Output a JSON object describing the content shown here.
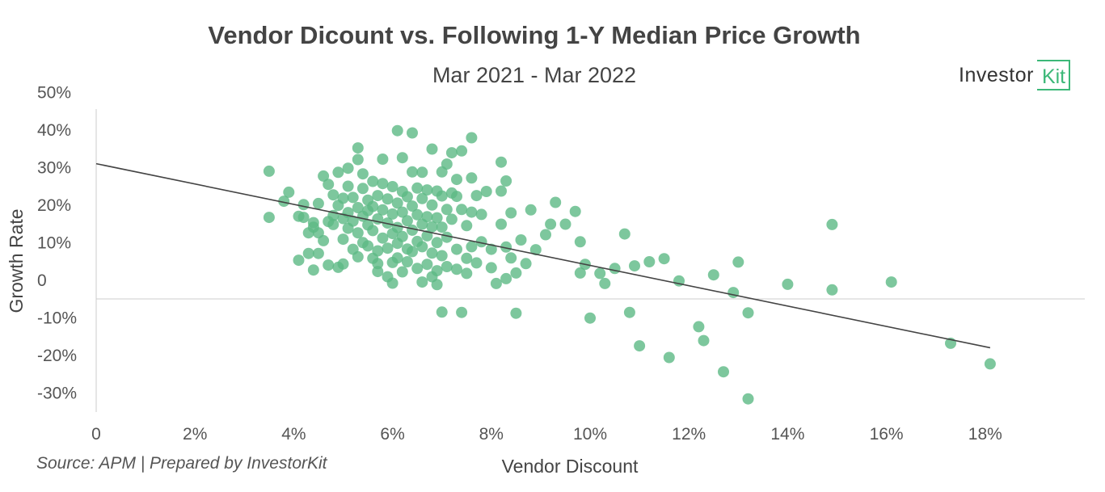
{
  "chart_data": {
    "type": "scatter",
    "title": "Vendor Dicount vs. Following 1-Y Median Price Growth",
    "subtitle": "Mar 2021 - Mar 2022",
    "xlabel": "Vendor Discount",
    "ylabel": "Growth Rate",
    "xlim": [
      0,
      20
    ],
    "ylim": [
      -33,
      50
    ],
    "x_ticks": [
      0,
      2,
      4,
      6,
      8,
      10,
      12,
      14,
      16,
      18
    ],
    "x_tick_labels": [
      "0",
      "2%",
      "4%",
      "6%",
      "8%",
      "10%",
      "12%",
      "14%",
      "16%",
      "18%"
    ],
    "y_ticks": [
      50,
      40,
      30,
      20,
      10,
      0,
      -10,
      -20,
      -30
    ],
    "y_tick_labels": [
      "50%",
      "40%",
      "30%",
      "20%",
      "10%",
      "0",
      "-10%",
      "-20%",
      "-30%"
    ],
    "marker_color": "#5cb985",
    "trendline": {
      "color": "#444444",
      "x": [
        0,
        18.1
      ],
      "y": [
        36,
        -13
      ]
    },
    "points": [
      [
        3.5,
        34
      ],
      [
        3.5,
        21.7
      ],
      [
        3.8,
        26
      ],
      [
        3.9,
        28.4
      ],
      [
        4.1,
        22
      ],
      [
        4.1,
        10.3
      ],
      [
        4.2,
        25.1
      ],
      [
        4.2,
        21.7
      ],
      [
        4.3,
        17.6
      ],
      [
        4.3,
        12.1
      ],
      [
        4.4,
        7.7
      ],
      [
        4.4,
        20.3
      ],
      [
        4.4,
        19.1
      ],
      [
        4.5,
        17.6
      ],
      [
        4.5,
        25.4
      ],
      [
        4.5,
        12.1
      ],
      [
        4.6,
        15.5
      ],
      [
        4.6,
        32.7
      ],
      [
        4.7,
        20.6
      ],
      [
        4.7,
        30.5
      ],
      [
        4.7,
        9
      ],
      [
        4.8,
        19.8
      ],
      [
        4.8,
        27.7
      ],
      [
        4.8,
        22.2
      ],
      [
        4.9,
        24.9
      ],
      [
        4.9,
        33.7
      ],
      [
        4.9,
        8.4
      ],
      [
        5.0,
        26.8
      ],
      [
        5.0,
        21.4
      ],
      [
        5.0,
        15.9
      ],
      [
        5.0,
        9.3
      ],
      [
        5.1,
        34.8
      ],
      [
        5.1,
        23
      ],
      [
        5.1,
        30
      ],
      [
        5.1,
        18.8
      ],
      [
        5.2,
        13.2
      ],
      [
        5.2,
        27
      ],
      [
        5.2,
        20.7
      ],
      [
        5.3,
        37.1
      ],
      [
        5.3,
        40.2
      ],
      [
        5.3,
        24.3
      ],
      [
        5.3,
        17.6
      ],
      [
        5.3,
        11.2
      ],
      [
        5.4,
        29.4
      ],
      [
        5.4,
        33.3
      ],
      [
        5.4,
        22
      ],
      [
        5.4,
        15
      ],
      [
        5.5,
        26.3
      ],
      [
        5.5,
        19.7
      ],
      [
        5.5,
        14.1
      ],
      [
        5.5,
        23.5
      ],
      [
        5.6,
        24.6
      ],
      [
        5.6,
        31.3
      ],
      [
        5.6,
        18.2
      ],
      [
        5.6,
        10.8
      ],
      [
        5.7,
        27.5
      ],
      [
        5.7,
        21.3
      ],
      [
        5.7,
        12.8
      ],
      [
        5.7,
        7.3
      ],
      [
        5.7,
        9.4
      ],
      [
        5.8,
        37.2
      ],
      [
        5.8,
        23.7
      ],
      [
        5.8,
        16.2
      ],
      [
        5.8,
        30.7
      ],
      [
        5.9,
        26.6
      ],
      [
        5.9,
        20.2
      ],
      [
        5.9,
        13.5
      ],
      [
        5.9,
        5.9
      ],
      [
        6.0,
        29.9
      ],
      [
        6.0,
        22.6
      ],
      [
        6.0,
        17.4
      ],
      [
        6.0,
        9.7
      ],
      [
        6.0,
        4.2
      ],
      [
        6.1,
        44.8
      ],
      [
        6.1,
        25.5
      ],
      [
        6.1,
        19
      ],
      [
        6.1,
        14.8
      ],
      [
        6.1,
        10.9
      ],
      [
        6.2,
        37.6
      ],
      [
        6.2,
        28.6
      ],
      [
        6.2,
        23.1
      ],
      [
        6.2,
        16.6
      ],
      [
        6.2,
        7.2
      ],
      [
        6.3,
        27.2
      ],
      [
        6.3,
        20.8
      ],
      [
        6.3,
        13.3
      ],
      [
        6.3,
        9.9
      ],
      [
        6.4,
        44.2
      ],
      [
        6.4,
        33.8
      ],
      [
        6.4,
        24.7
      ],
      [
        6.4,
        18.3
      ],
      [
        6.4,
        12.6
      ],
      [
        6.5,
        29.5
      ],
      [
        6.5,
        22.4
      ],
      [
        6.5,
        15.3
      ],
      [
        6.5,
        8.1
      ],
      [
        6.6,
        33.7
      ],
      [
        6.6,
        26.7
      ],
      [
        6.6,
        19.9
      ],
      [
        6.6,
        13.9
      ],
      [
        6.6,
        4.5
      ],
      [
        6.7,
        29
      ],
      [
        6.7,
        21.9
      ],
      [
        6.7,
        16.8
      ],
      [
        6.7,
        9.2
      ],
      [
        6.8,
        39.9
      ],
      [
        6.8,
        25
      ],
      [
        6.8,
        19.2
      ],
      [
        6.8,
        12.2
      ],
      [
        6.8,
        5.9
      ],
      [
        6.9,
        28.7
      ],
      [
        6.9,
        21.6
      ],
      [
        6.9,
        15
      ],
      [
        6.9,
        7.5
      ],
      [
        6.9,
        3.8
      ],
      [
        7.0,
        33.8
      ],
      [
        7.0,
        27.4
      ],
      [
        7.0,
        19.1
      ],
      [
        7.0,
        11.5
      ],
      [
        7.0,
        -3.5
      ],
      [
        7.1,
        35.9
      ],
      [
        7.1,
        23.8
      ],
      [
        7.1,
        16.4
      ],
      [
        7.1,
        8.6
      ],
      [
        7.2,
        38.9
      ],
      [
        7.2,
        28.2
      ],
      [
        7.2,
        21.2
      ],
      [
        7.3,
        13.2
      ],
      [
        7.3,
        7.9
      ],
      [
        7.3,
        31.8
      ],
      [
        7.3,
        27.3
      ],
      [
        7.4,
        39.4
      ],
      [
        7.4,
        -3.6
      ],
      [
        7.4,
        23.8
      ],
      [
        7.5,
        19.5
      ],
      [
        7.5,
        10.8
      ],
      [
        7.5,
        6.8
      ],
      [
        7.6,
        42.9
      ],
      [
        7.6,
        32.2
      ],
      [
        7.6,
        23.1
      ],
      [
        7.6,
        13.9
      ],
      [
        7.7,
        27.5
      ],
      [
        7.7,
        9.6
      ],
      [
        7.8,
        15.2
      ],
      [
        7.8,
        22.5
      ],
      [
        7.9,
        28.6
      ],
      [
        8.0,
        13.2
      ],
      [
        8.0,
        8.3
      ],
      [
        8.1,
        4.1
      ],
      [
        8.2,
        36.4
      ],
      [
        8.2,
        28.7
      ],
      [
        8.2,
        19.9
      ],
      [
        8.3,
        31.4
      ],
      [
        8.3,
        13.8
      ],
      [
        8.3,
        5.4
      ],
      [
        8.4,
        22.9
      ],
      [
        8.4,
        10.9
      ],
      [
        8.5,
        6.9
      ],
      [
        8.5,
        -3.8
      ],
      [
        8.6,
        15.7
      ],
      [
        8.7,
        9.4
      ],
      [
        8.8,
        23.7
      ],
      [
        8.9,
        13.1
      ],
      [
        9.1,
        17.1
      ],
      [
        9.2,
        19.9
      ],
      [
        9.3,
        25.7
      ],
      [
        9.5,
        19.9
      ],
      [
        9.7,
        23.3
      ],
      [
        9.8,
        15.2
      ],
      [
        9.8,
        6.9
      ],
      [
        9.9,
        9.2
      ],
      [
        10.0,
        -5.1
      ],
      [
        10.2,
        6.8
      ],
      [
        10.3,
        4.1
      ],
      [
        10.5,
        8.1
      ],
      [
        10.7,
        17.3
      ],
      [
        10.8,
        -3.6
      ],
      [
        10.9,
        8.8
      ],
      [
        11.0,
        -12.5
      ],
      [
        11.2,
        9.9
      ],
      [
        11.5,
        10.7
      ],
      [
        11.6,
        -15.6
      ],
      [
        11.8,
        4.8
      ],
      [
        12.2,
        -7.4
      ],
      [
        12.3,
        -11.1
      ],
      [
        12.5,
        6.4
      ],
      [
        12.7,
        -19.4
      ],
      [
        12.9,
        1.7
      ],
      [
        13.0,
        9.8
      ],
      [
        13.2,
        -26.6
      ],
      [
        13.2,
        -3.7
      ],
      [
        14.0,
        3.9
      ],
      [
        14.9,
        2.4
      ],
      [
        14.9,
        19.8
      ],
      [
        16.1,
        4.5
      ],
      [
        17.3,
        -11.8
      ],
      [
        18.1,
        -17.3
      ]
    ]
  },
  "logo": {
    "text": "Investor",
    "box_text": "Kit"
  },
  "source": "Source: APM | Prepared by InvestorKit"
}
